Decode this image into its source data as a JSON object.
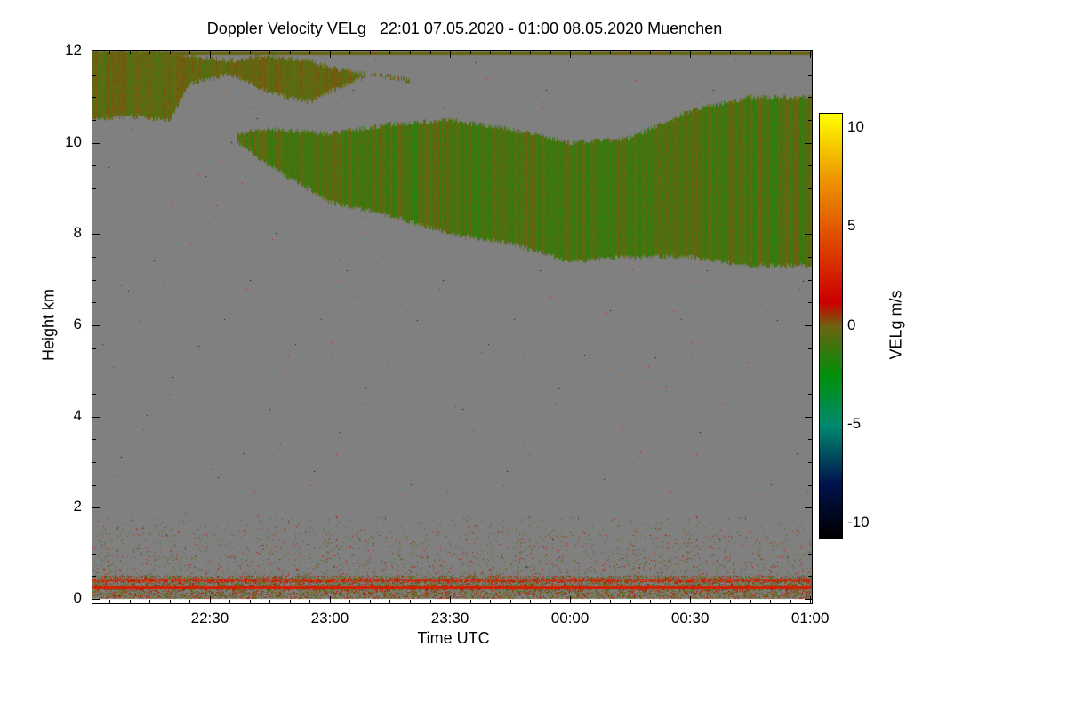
{
  "chart_data": {
    "type": "heatmap",
    "title": "Doppler Velocity VELg   22:01 07.05.2020 - 01:00 08.05.2020 Muenchen",
    "xlabel": "Time UTC",
    "ylabel": "Height km",
    "colorbar_label": "VELg m/s",
    "x_range_minutes_after_2200": [
      0.7,
      180.4
    ],
    "y_range_km": [
      -0.1,
      12.02
    ],
    "x_ticks": [
      {
        "label": "22:30",
        "minutes": 30
      },
      {
        "label": "23:00",
        "minutes": 60
      },
      {
        "label": "23:30",
        "minutes": 90
      },
      {
        "label": "00:00",
        "minutes": 120
      },
      {
        "label": "00:30",
        "minutes": 150
      },
      {
        "label": "01:00",
        "minutes": 180
      }
    ],
    "y_ticks": [
      0,
      2,
      4,
      6,
      8,
      10,
      12
    ],
    "colorbar_range": [
      -10.7,
      10.7
    ],
    "colorbar_ticks": [
      10,
      5,
      0,
      -5,
      -10
    ],
    "colormap": [
      {
        "v": -10.7,
        "c": "#000000"
      },
      {
        "v": -8,
        "c": "#00124e"
      },
      {
        "v": -5,
        "c": "#008a70"
      },
      {
        "v": -2.5,
        "c": "#00900a"
      },
      {
        "v": 0,
        "c": "#6e6412"
      },
      {
        "v": 1.2,
        "c": "#cc0000"
      },
      {
        "v": 5,
        "c": "#e25a00"
      },
      {
        "v": 7.5,
        "c": "#ee9800"
      },
      {
        "v": 10.7,
        "c": "#ffff00"
      }
    ],
    "background_color": "#808080",
    "main_cloud": {
      "time_minutes": [
        37,
        45,
        60,
        75,
        90,
        105,
        120,
        135,
        150,
        165,
        180.4
      ],
      "top_km": [
        10.2,
        10.3,
        10.2,
        10.4,
        10.5,
        10.3,
        10.0,
        10.1,
        10.7,
        11.0,
        11.0
      ],
      "base_km": [
        10.0,
        9.5,
        8.7,
        8.4,
        8.0,
        7.8,
        7.4,
        7.5,
        7.5,
        7.3,
        7.3
      ],
      "mean_velocity": -0.8
    },
    "upper_cloud": {
      "time_minutes": [
        0.7,
        10,
        20,
        25,
        35,
        45,
        55,
        62,
        70,
        80
      ],
      "top_km": [
        12,
        12,
        12,
        11.9,
        11.8,
        11.9,
        11.8,
        11.6,
        11.5,
        11.4
      ],
      "base_km": [
        10.5,
        10.6,
        10.5,
        11.3,
        11.5,
        11.1,
        10.9,
        11.2,
        11.5,
        11.35
      ],
      "mean_velocity": -0.3
    },
    "boundary_layer": {
      "dense_top_km": 0.5,
      "sparse_top_km": 1.8,
      "red_layer_km": 0.25,
      "red_layer_velocity": 2
    }
  }
}
